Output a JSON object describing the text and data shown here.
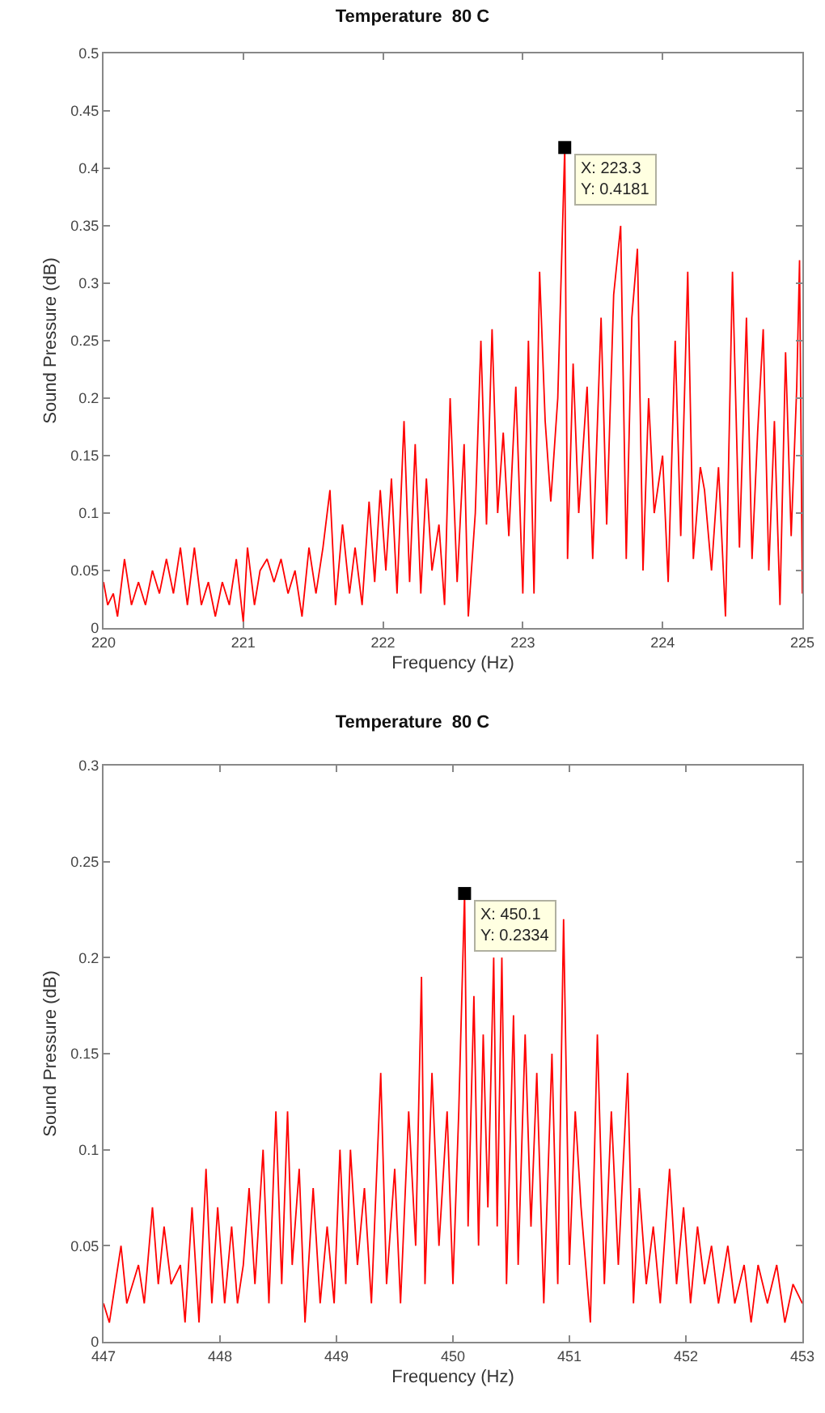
{
  "chart_data": [
    {
      "type": "line",
      "title": "Temperature  80 C",
      "xlabel": "Frequency (Hz)",
      "ylabel": "Sound Pressure (dB)",
      "xlim": [
        220,
        225
      ],
      "xticks": [
        220,
        221,
        222,
        223,
        224,
        225
      ],
      "ylim": [
        0,
        0.5
      ],
      "yticks": [
        0,
        0.05,
        0.1,
        0.15,
        0.2,
        0.25,
        0.3,
        0.35,
        0.4,
        0.45,
        0.5
      ],
      "grid": false,
      "marker": "none",
      "line_style": "solid",
      "annotations": [
        {
          "text": "X: 223.3\nY: 0.4181",
          "x": 223.3,
          "y": 0.4181
        }
      ],
      "x": [
        220.0,
        220.03,
        220.07,
        220.1,
        220.15,
        220.2,
        220.25,
        220.3,
        220.35,
        220.4,
        220.45,
        220.5,
        220.55,
        220.6,
        220.65,
        220.7,
        220.75,
        220.8,
        220.85,
        220.9,
        220.95,
        221.0,
        221.03,
        221.08,
        221.12,
        221.17,
        221.22,
        221.27,
        221.32,
        221.37,
        221.42,
        221.47,
        221.52,
        221.57,
        221.62,
        221.66,
        221.71,
        221.76,
        221.8,
        221.85,
        221.9,
        221.94,
        221.98,
        222.02,
        222.06,
        222.1,
        222.15,
        222.19,
        222.23,
        222.27,
        222.31,
        222.35,
        222.4,
        222.44,
        222.48,
        222.53,
        222.58,
        222.61,
        222.66,
        222.7,
        222.74,
        222.78,
        222.82,
        222.86,
        222.9,
        222.95,
        223.0,
        223.04,
        223.08,
        223.12,
        223.16,
        223.2,
        223.25,
        223.3,
        223.32,
        223.36,
        223.4,
        223.46,
        223.5,
        223.56,
        223.6,
        223.65,
        223.7,
        223.74,
        223.78,
        223.82,
        223.86,
        223.9,
        223.94,
        224.0,
        224.04,
        224.09,
        224.13,
        224.18,
        224.22,
        224.27,
        224.3,
        224.35,
        224.4,
        224.45,
        224.5,
        224.55,
        224.6,
        224.64,
        224.68,
        224.72,
        224.76,
        224.8,
        224.84,
        224.88,
        224.92,
        224.96,
        224.98,
        225.0
      ],
      "series": [
        {
          "color": "#ff0000",
          "values": [
            0.04,
            0.02,
            0.03,
            0.01,
            0.06,
            0.02,
            0.04,
            0.02,
            0.05,
            0.03,
            0.06,
            0.03,
            0.07,
            0.02,
            0.07,
            0.02,
            0.04,
            0.01,
            0.04,
            0.02,
            0.06,
            0.005,
            0.07,
            0.02,
            0.05,
            0.06,
            0.04,
            0.06,
            0.03,
            0.05,
            0.01,
            0.07,
            0.03,
            0.07,
            0.12,
            0.02,
            0.09,
            0.03,
            0.07,
            0.02,
            0.11,
            0.04,
            0.12,
            0.05,
            0.13,
            0.03,
            0.18,
            0.04,
            0.16,
            0.03,
            0.13,
            0.05,
            0.09,
            0.02,
            0.2,
            0.04,
            0.16,
            0.01,
            0.1,
            0.25,
            0.09,
            0.26,
            0.1,
            0.17,
            0.08,
            0.21,
            0.03,
            0.25,
            0.03,
            0.31,
            0.18,
            0.11,
            0.2,
            0.4181,
            0.06,
            0.23,
            0.1,
            0.21,
            0.06,
            0.27,
            0.09,
            0.29,
            0.35,
            0.06,
            0.27,
            0.33,
            0.05,
            0.2,
            0.1,
            0.15,
            0.04,
            0.25,
            0.08,
            0.31,
            0.06,
            0.14,
            0.12,
            0.05,
            0.14,
            0.01,
            0.31,
            0.07,
            0.27,
            0.06,
            0.17,
            0.26,
            0.05,
            0.18,
            0.02,
            0.24,
            0.08,
            0.21,
            0.32,
            0.03
          ]
        }
      ]
    },
    {
      "type": "line",
      "title": "Temperature  80 C",
      "xlabel": "Frequency (Hz)",
      "ylabel": "Sound Pressure (dB)",
      "xlim": [
        447,
        453
      ],
      "xticks": [
        447,
        448,
        449,
        450,
        451,
        452,
        453
      ],
      "ylim": [
        0,
        0.3
      ],
      "yticks": [
        0,
        0.05,
        0.1,
        0.15,
        0.2,
        0.25,
        0.3
      ],
      "grid": false,
      "marker": "none",
      "line_style": "solid",
      "annotations": [
        {
          "text": "X: 450.1\nY: 0.2334",
          "x": 450.1,
          "y": 0.2334
        }
      ],
      "x": [
        447.0,
        447.05,
        447.1,
        447.15,
        447.2,
        447.3,
        447.35,
        447.42,
        447.47,
        447.52,
        447.58,
        447.66,
        447.7,
        447.76,
        447.82,
        447.88,
        447.93,
        447.98,
        448.04,
        448.1,
        448.15,
        448.2,
        448.25,
        448.3,
        448.37,
        448.42,
        448.48,
        448.53,
        448.58,
        448.62,
        448.68,
        448.73,
        448.8,
        448.86,
        448.92,
        448.98,
        449.03,
        449.08,
        449.12,
        449.18,
        449.24,
        449.3,
        449.38,
        449.43,
        449.5,
        449.55,
        449.62,
        449.68,
        449.73,
        449.76,
        449.82,
        449.88,
        449.95,
        450.0,
        450.05,
        450.1,
        450.13,
        450.18,
        450.22,
        450.26,
        450.3,
        450.35,
        450.38,
        450.42,
        450.46,
        450.52,
        450.56,
        450.62,
        450.67,
        450.72,
        450.78,
        450.85,
        450.9,
        450.95,
        451.0,
        451.05,
        451.1,
        451.18,
        451.24,
        451.3,
        451.36,
        451.42,
        451.5,
        451.55,
        451.6,
        451.66,
        451.72,
        451.78,
        451.86,
        451.92,
        451.98,
        452.04,
        452.1,
        452.16,
        452.22,
        452.28,
        452.36,
        452.42,
        452.5,
        452.56,
        452.62,
        452.7,
        452.78,
        452.85,
        452.92,
        453.0
      ],
      "series": [
        {
          "color": "#ff0000",
          "values": [
            0.02,
            0.01,
            0.03,
            0.05,
            0.02,
            0.04,
            0.02,
            0.07,
            0.03,
            0.06,
            0.03,
            0.04,
            0.01,
            0.07,
            0.01,
            0.09,
            0.02,
            0.07,
            0.02,
            0.06,
            0.02,
            0.04,
            0.08,
            0.03,
            0.1,
            0.02,
            0.12,
            0.03,
            0.12,
            0.04,
            0.09,
            0.01,
            0.08,
            0.02,
            0.06,
            0.02,
            0.1,
            0.03,
            0.1,
            0.04,
            0.08,
            0.02,
            0.14,
            0.03,
            0.09,
            0.02,
            0.12,
            0.05,
            0.19,
            0.03,
            0.14,
            0.05,
            0.12,
            0.03,
            0.12,
            0.2334,
            0.06,
            0.18,
            0.05,
            0.16,
            0.07,
            0.2,
            0.06,
            0.2,
            0.03,
            0.17,
            0.04,
            0.16,
            0.06,
            0.14,
            0.02,
            0.15,
            0.03,
            0.22,
            0.04,
            0.12,
            0.07,
            0.01,
            0.16,
            0.03,
            0.12,
            0.04,
            0.14,
            0.02,
            0.08,
            0.03,
            0.06,
            0.02,
            0.09,
            0.03,
            0.07,
            0.02,
            0.06,
            0.03,
            0.05,
            0.02,
            0.05,
            0.02,
            0.04,
            0.01,
            0.04,
            0.02,
            0.04,
            0.01,
            0.03,
            0.02
          ]
        }
      ]
    }
  ]
}
